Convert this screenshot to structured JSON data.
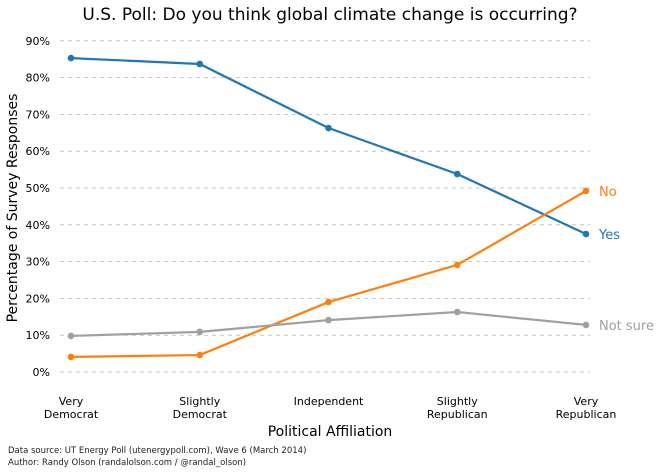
{
  "chart_data": {
    "type": "line",
    "title": "U.S. Poll: Do you think global climate change is occurring?",
    "xlabel": "Political Affiliation",
    "ylabel": "Percentage of Survey Responses",
    "categories": [
      [
        "Very",
        "Democrat"
      ],
      [
        "Slightly",
        "Democrat"
      ],
      [
        "Independent"
      ],
      [
        "Slightly",
        "Republican"
      ],
      [
        "Very",
        "Republican"
      ]
    ],
    "ylim": [
      0,
      90
    ],
    "yticks": [
      "0%",
      "10%",
      "20%",
      "30%",
      "40%",
      "50%",
      "60%",
      "70%",
      "80%",
      "90%"
    ],
    "grid": "horizontal dashed",
    "legend": "direct labels at right end of lines",
    "series": [
      {
        "name": "Yes",
        "color": "#1f77b4",
        "values": [
          85.3,
          83.7,
          66.3,
          53.8,
          37.5
        ]
      },
      {
        "name": "No",
        "color": "#ff7f0e",
        "values": [
          4.1,
          4.6,
          19.0,
          29.1,
          49.2
        ]
      },
      {
        "name": "Not sure",
        "color": "#a0a0a0",
        "values": [
          9.8,
          10.9,
          14.1,
          16.3,
          12.8
        ]
      }
    ]
  },
  "footer": {
    "source": "Data source: UT Energy Poll (utenergypoll.com), Wave 6 (March 2014)",
    "author": "Author: Randy Olson (randalolson.com / @randal_olson)"
  }
}
